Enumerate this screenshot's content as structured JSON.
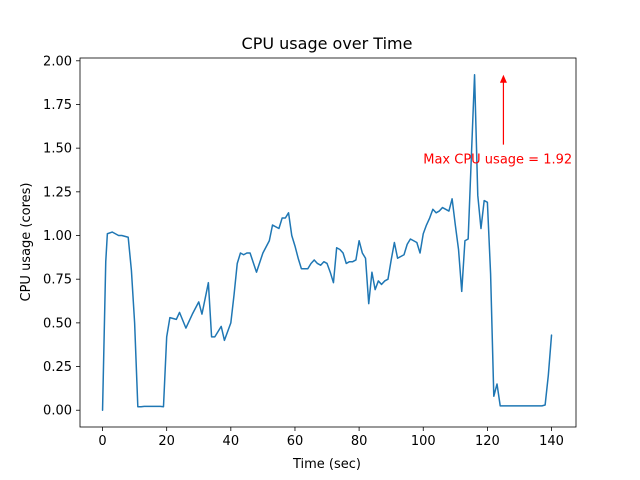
{
  "chart_data": {
    "type": "line",
    "title": "CPU usage over Time",
    "xlabel": "Time (sec)",
    "ylabel": "CPU usage (cores)",
    "xlim": [
      -7.03,
      147.63
    ],
    "ylim": [
      -0.096,
      2.016
    ],
    "xticks": [
      0,
      20,
      40,
      60,
      80,
      100,
      120,
      140
    ],
    "xtick_labels": [
      "0",
      "20",
      "40",
      "60",
      "80",
      "100",
      "120",
      "140"
    ],
    "yticks": [
      0.0,
      0.25,
      0.5,
      0.75,
      1.0,
      1.25,
      1.5,
      1.75,
      2.0
    ],
    "ytick_labels": [
      "0.00",
      "0.25",
      "0.50",
      "0.75",
      "1.00",
      "1.25",
      "1.50",
      "1.75",
      "2.00"
    ],
    "grid": false,
    "line_color": "#1f77b4",
    "series": [
      {
        "x": [
          0,
          1,
          1.5,
          3,
          5,
          6,
          8,
          9,
          10,
          11,
          12,
          13,
          15,
          17,
          18,
          19,
          20,
          21,
          23,
          24,
          26,
          28,
          30,
          31,
          33,
          34,
          35,
          37,
          38,
          39,
          40,
          41,
          42,
          43,
          44,
          45,
          46,
          48,
          50,
          52,
          53,
          55,
          56,
          57,
          58,
          59,
          60,
          61,
          62,
          63,
          64,
          65,
          66,
          67,
          68,
          69,
          70,
          71,
          72,
          73,
          74,
          75,
          76,
          77,
          78,
          79,
          80,
          81,
          82,
          83,
          84,
          85,
          86,
          87,
          88,
          89,
          90,
          91,
          92,
          93,
          94,
          95,
          96,
          97,
          98,
          99,
          100,
          101,
          102,
          103,
          104,
          105,
          106,
          107,
          108,
          109,
          110,
          111,
          112,
          113,
          114,
          115,
          116,
          117,
          118,
          119,
          120,
          121,
          122,
          123,
          124,
          125,
          126,
          127,
          128,
          129,
          130,
          131,
          132,
          133,
          134,
          135,
          136,
          137,
          138,
          139,
          140
        ],
        "y": [
          0.0,
          0.85,
          1.01,
          1.02,
          1.0,
          1.0,
          0.99,
          0.8,
          0.5,
          0.02,
          0.02,
          0.022,
          0.022,
          0.022,
          0.022,
          0.02,
          0.42,
          0.53,
          0.52,
          0.56,
          0.47,
          0.55,
          0.62,
          0.55,
          0.73,
          0.42,
          0.42,
          0.48,
          0.4,
          0.45,
          0.5,
          0.66,
          0.84,
          0.9,
          0.89,
          0.9,
          0.9,
          0.79,
          0.9,
          0.97,
          1.06,
          1.04,
          1.1,
          1.1,
          1.13,
          1.0,
          0.94,
          0.87,
          0.81,
          0.81,
          0.81,
          0.84,
          0.86,
          0.84,
          0.83,
          0.85,
          0.84,
          0.79,
          0.73,
          0.93,
          0.92,
          0.9,
          0.84,
          0.85,
          0.85,
          0.86,
          0.97,
          0.9,
          0.87,
          0.61,
          0.79,
          0.69,
          0.74,
          0.72,
          0.74,
          0.75,
          0.86,
          0.96,
          0.87,
          0.88,
          0.89,
          0.95,
          0.98,
          0.97,
          0.96,
          0.9,
          1.01,
          1.06,
          1.1,
          1.15,
          1.13,
          1.14,
          1.16,
          1.15,
          1.14,
          1.21,
          1.06,
          0.92,
          0.68,
          0.97,
          0.98,
          1.45,
          1.92,
          1.23,
          1.04,
          1.2,
          1.19,
          0.78,
          0.08,
          0.15,
          0.025,
          0.025,
          0.025,
          0.025,
          0.025,
          0.025,
          0.025,
          0.025,
          0.025,
          0.025,
          0.025,
          0.025,
          0.025,
          0.025,
          0.03,
          0.2,
          0.43
        ]
      }
    ],
    "annotations": [
      {
        "text": "Max CPU usage = 1.92",
        "point": [
          125,
          1.92
        ],
        "text_anchor": [
          100,
          1.44
        ],
        "color": "#ff0000"
      }
    ]
  }
}
